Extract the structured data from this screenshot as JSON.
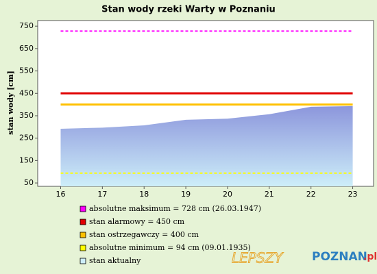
{
  "chart_data": {
    "type": "area",
    "title": "Stan wody rzeki Warty w Poznaniu",
    "y_label": "stan wody [cm]",
    "x": [
      16,
      17,
      18,
      19,
      20,
      21,
      22,
      23
    ],
    "xlim": [
      15.45,
      23.5
    ],
    "xticks": [
      16,
      17,
      18,
      19,
      20,
      21,
      22,
      23
    ],
    "ylim": [
      35,
      775
    ],
    "yticks": [
      50,
      150,
      250,
      350,
      450,
      550,
      650,
      750
    ],
    "grid": false,
    "reference_lines": [
      {
        "name": "absolutne maksimum = 728 cm (26.03.1947)",
        "value": 728,
        "color": "#ff00ff",
        "dashed": true
      },
      {
        "name": "stan alarmowy = 450 cm",
        "value": 450,
        "color": "#e00000",
        "dashed": false
      },
      {
        "name": "stan ostrzegawczy = 400 cm",
        "value": 400,
        "color": "#ffc000",
        "dashed": false
      },
      {
        "name": "absolutne minimum = 94 cm (09.01.1935)",
        "value": 94,
        "color": "#ffff00",
        "dashed": true
      }
    ],
    "series": [
      {
        "name": "stan aktualny",
        "color": "#8c96dc",
        "values": [
          292,
          297,
          307,
          332,
          337,
          357,
          390,
          393
        ]
      }
    ],
    "watermark": {
      "part1": "LEPSZY",
      "part2": "POZNAN",
      "part3": ".pl"
    }
  }
}
